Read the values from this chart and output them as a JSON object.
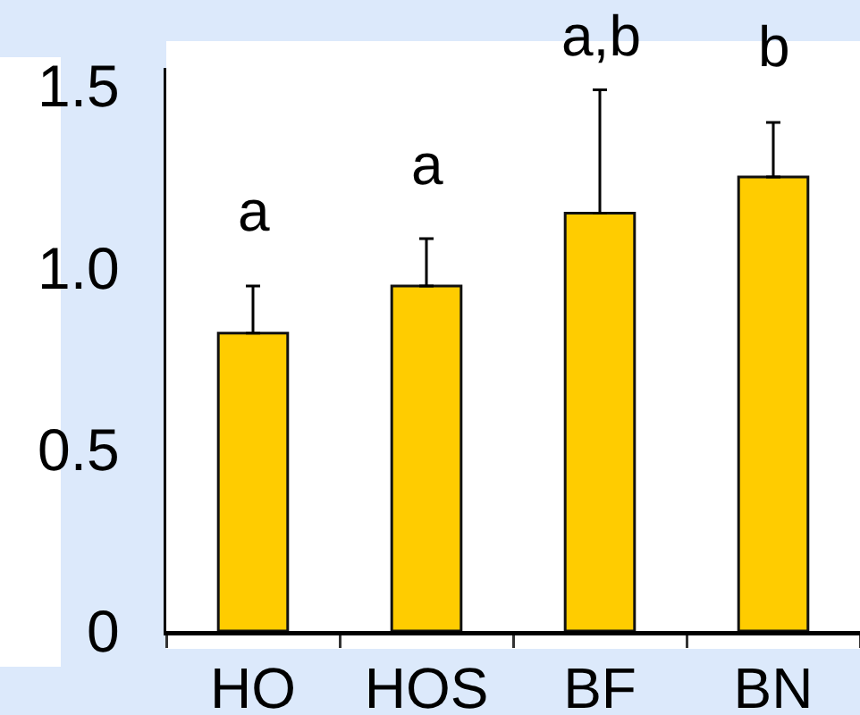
{
  "chart_data": {
    "type": "bar",
    "categories": [
      "HO",
      "HOS",
      "BF",
      "BN"
    ],
    "values": [
      0.82,
      0.95,
      1.15,
      1.25
    ],
    "color": "#ffcc00",
    "errors": [
      [
        0.82,
        0.95
      ],
      [
        0.95,
        1.08
      ],
      [
        1.15,
        1.49
      ],
      [
        1.25,
        1.4
      ]
    ],
    "ylim": [
      0,
      1.55
    ],
    "yticks": [
      0,
      0.5,
      {
        "value": 1,
        "label": "1.0"
      },
      1.5
    ],
    "annotations": [
      {
        "text": "a",
        "x": "HO",
        "y": 0.95
      },
      {
        "text": "a",
        "x": "HOS",
        "y": 1.08
      },
      {
        "text": "a,b",
        "x": "BF",
        "y": 1.49
      },
      {
        "text": "b",
        "x": "BN",
        "y": 1.4
      }
    ]
  }
}
